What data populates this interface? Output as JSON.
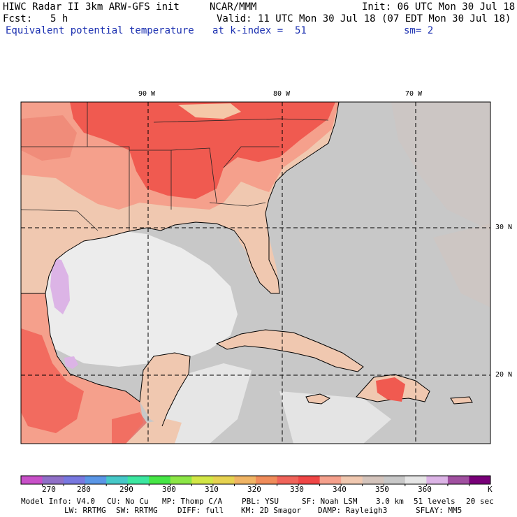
{
  "header": {
    "title": "HIWC Radar II 3km ARW-GFS init",
    "org": "NCAR/MMM",
    "init": "Init: 06 UTC Mon 30 Jul 18",
    "fcst_label": "Fcst:",
    "fcst_value": "5 h",
    "valid": "Valid: 11 UTC Mon 30 Jul 18 (07 EDT Mon 30 Jul 18)",
    "field": "Equivalent potential temperature",
    "level": "at k-index =  51",
    "smooth": "sm= 2"
  },
  "map": {
    "lon_labels": [
      "90 W",
      "80 W",
      "70 W"
    ],
    "lat_labels": [
      "30 N",
      "20 N"
    ],
    "colors": {
      "background_gray": "#c8c8c8",
      "land_peach": "#f0c8b0",
      "warm_salmon": "#f5a08c",
      "hot_red": "#f05a50",
      "pale_white": "#ececec",
      "lavender": "#dcb4e6"
    }
  },
  "colorbar": {
    "colors": [
      "#c850c8",
      "#9070c8",
      "#7878e0",
      "#5a96e6",
      "#46c8c8",
      "#3ce6a0",
      "#46e646",
      "#8ce646",
      "#d2e646",
      "#e6d250",
      "#f0b464",
      "#f08c5a",
      "#f0645a",
      "#f04646",
      "#f5a08c",
      "#f0c8b0",
      "#d4c4bc",
      "#c8c8c8",
      "#e6e6e6",
      "#dcb4e6",
      "#a050a0",
      "#780078"
    ],
    "labels": [
      "270",
      "280",
      "290",
      "300",
      "310",
      "320",
      "330",
      "340",
      "350",
      "360"
    ],
    "unit": "K"
  },
  "footer": {
    "line1": [
      "Model Info: V4.0",
      "CU: No Cu",
      "MP: Thomp C/A",
      "PBL: YSU",
      "SF: Noah LSM",
      "3.0 km",
      "51 levels",
      "20 sec"
    ],
    "line2": [
      "LW: RRTMG",
      "SW: RRTMG",
      "DIFF: full",
      "KM: 2D Smagor",
      "DAMP: Rayleigh3",
      "SFLAY: MM5"
    ]
  }
}
